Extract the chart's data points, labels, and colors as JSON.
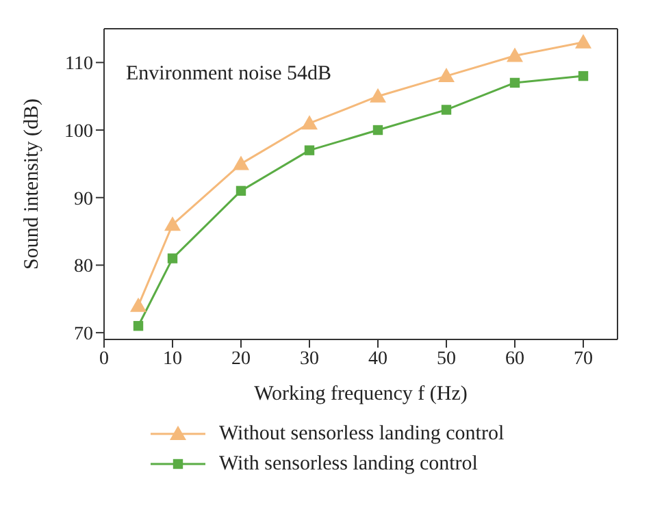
{
  "chart_data": {
    "type": "line",
    "xlabel": "Working frequency f (Hz)",
    "ylabel": "Sound intensity (dB)",
    "annotations": [
      "Environment noise 54dB"
    ],
    "x": [
      5,
      10,
      20,
      30,
      40,
      50,
      60,
      70
    ],
    "series": [
      {
        "name": "Without sensorless landing control",
        "color": "#f5b97a",
        "marker": "triangle",
        "values": [
          74,
          86,
          95,
          101,
          105,
          108,
          111,
          113
        ]
      },
      {
        "name": "With sensorless landing control",
        "color": "#5aac44",
        "marker": "square",
        "values": [
          71,
          81,
          91,
          97,
          100,
          103,
          107,
          108
        ]
      }
    ],
    "xlim": [
      0,
      75
    ],
    "xticks": [
      0,
      10,
      20,
      30,
      40,
      50,
      60,
      70
    ],
    "ylim": [
      69,
      115
    ],
    "yticks": [
      70,
      80,
      90,
      100,
      110
    ],
    "grid": false,
    "legend": "bottom"
  }
}
